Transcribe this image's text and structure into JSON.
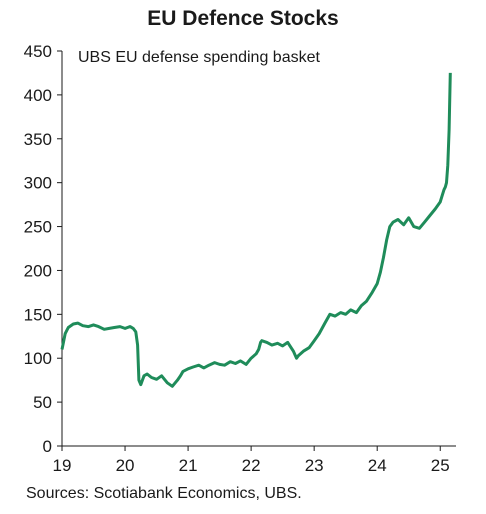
{
  "chart_data": {
    "type": "line",
    "title": "EU Defence Stocks",
    "source": "Sources: Scotiabank Economics, UBS.",
    "xlabel": "",
    "ylabel": "",
    "xlim": [
      2019,
      2025.25
    ],
    "ylim": [
      0,
      450
    ],
    "y_ticks": [
      "0",
      "50",
      "100",
      "150",
      "200",
      "250",
      "300",
      "350",
      "400",
      "450"
    ],
    "x_ticks": [
      "19",
      "20",
      "21",
      "22",
      "23",
      "24",
      "25"
    ],
    "line_color": "#1f8c5a",
    "series": [
      {
        "name": "UBS EU defense spending basket",
        "x": [
          2019.0,
          2019.05,
          2019.1,
          2019.18,
          2019.25,
          2019.33,
          2019.42,
          2019.5,
          2019.58,
          2019.67,
          2019.75,
          2019.83,
          2019.92,
          2020.0,
          2020.08,
          2020.13,
          2020.17,
          2020.2,
          2020.22,
          2020.25,
          2020.3,
          2020.35,
          2020.42,
          2020.5,
          2020.58,
          2020.67,
          2020.75,
          2020.83,
          2020.88,
          2020.92,
          2021.0,
          2021.08,
          2021.17,
          2021.25,
          2021.33,
          2021.42,
          2021.5,
          2021.58,
          2021.67,
          2021.75,
          2021.83,
          2021.92,
          2022.0,
          2022.08,
          2022.12,
          2022.15,
          2022.17,
          2022.25,
          2022.33,
          2022.42,
          2022.5,
          2022.58,
          2022.67,
          2022.72,
          2022.75,
          2022.83,
          2022.92,
          2023.0,
          2023.08,
          2023.17,
          2023.25,
          2023.33,
          2023.42,
          2023.5,
          2023.58,
          2023.67,
          2023.75,
          2023.83,
          2023.92,
          2024.0,
          2024.05,
          2024.1,
          2024.15,
          2024.2,
          2024.25,
          2024.33,
          2024.42,
          2024.5,
          2024.58,
          2024.67,
          2024.75,
          2024.83,
          2024.92,
          2025.0,
          2025.03,
          2025.06,
          2025.08,
          2025.1,
          2025.12,
          2025.14,
          2025.16
        ],
        "values": [
          110,
          128,
          135,
          139,
          140,
          137,
          136,
          138,
          136,
          133,
          134,
          135,
          136,
          134,
          136,
          134,
          130,
          115,
          75,
          70,
          80,
          82,
          78,
          76,
          80,
          72,
          68,
          75,
          80,
          85,
          88,
          90,
          92,
          89,
          92,
          95,
          93,
          92,
          96,
          94,
          97,
          93,
          100,
          105,
          110,
          118,
          120,
          118,
          115,
          117,
          114,
          118,
          108,
          100,
          103,
          108,
          112,
          120,
          128,
          140,
          150,
          148,
          152,
          150,
          155,
          152,
          160,
          165,
          175,
          185,
          198,
          215,
          235,
          250,
          255,
          258,
          252,
          260,
          250,
          248,
          255,
          262,
          270,
          278,
          285,
          292,
          295,
          300,
          320,
          360,
          425
        ]
      }
    ]
  }
}
